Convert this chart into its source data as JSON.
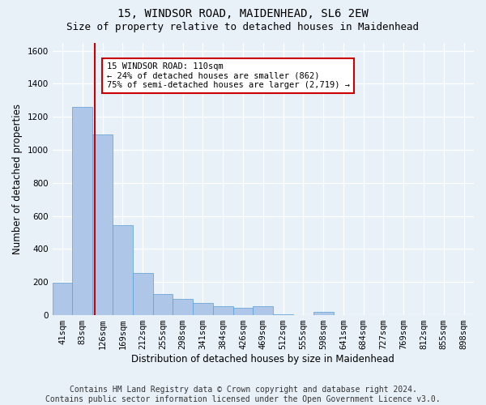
{
  "title": "15, WINDSOR ROAD, MAIDENHEAD, SL6 2EW",
  "subtitle": "Size of property relative to detached houses in Maidenhead",
  "xlabel": "Distribution of detached houses by size in Maidenhead",
  "ylabel": "Number of detached properties",
  "footer_line1": "Contains HM Land Registry data © Crown copyright and database right 2024.",
  "footer_line2": "Contains public sector information licensed under the Open Government Licence v3.0.",
  "bar_labels": [
    "41sqm",
    "83sqm",
    "126sqm",
    "169sqm",
    "212sqm",
    "255sqm",
    "298sqm",
    "341sqm",
    "384sqm",
    "426sqm",
    "469sqm",
    "512sqm",
    "555sqm",
    "598sqm",
    "641sqm",
    "684sqm",
    "727sqm",
    "769sqm",
    "812sqm",
    "855sqm",
    "898sqm"
  ],
  "bar_values": [
    195,
    1260,
    1095,
    545,
    255,
    130,
    100,
    75,
    55,
    45,
    55,
    5,
    0,
    20,
    0,
    0,
    0,
    0,
    0,
    0,
    0
  ],
  "bar_color": "#aec6e8",
  "bar_edge_color": "#5a9fd4",
  "bar_width": 1.0,
  "vline_pos": 1.63,
  "annotation_line1": "15 WINDSOR ROAD: 110sqm",
  "annotation_line2": "← 24% of detached houses are smaller (862)",
  "annotation_line3": "75% of semi-detached houses are larger (2,719) →",
  "annotation_color": "#cc0000",
  "ylim": [
    0,
    1650
  ],
  "yticks": [
    0,
    200,
    400,
    600,
    800,
    1000,
    1200,
    1400,
    1600
  ],
  "bg_color": "#e8f0f8",
  "plot_bg_color": "#e8f0f8",
  "grid_color": "#ffffff",
  "title_fontsize": 10,
  "subtitle_fontsize": 9,
  "axis_label_fontsize": 8.5,
  "tick_fontsize": 7.5,
  "footer_fontsize": 7
}
